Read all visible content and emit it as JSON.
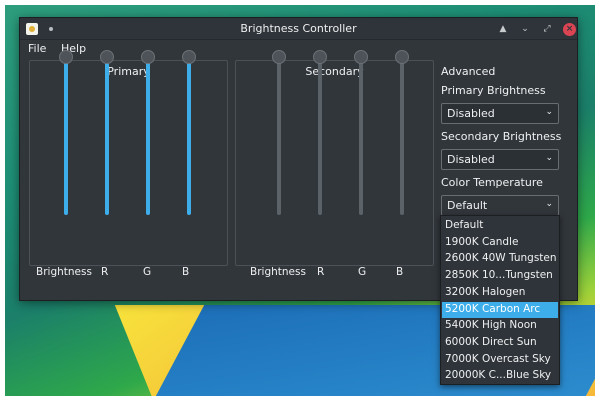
{
  "window": {
    "title": "Brightness Controller"
  },
  "menu": [
    "File",
    "Help"
  ],
  "primary": {
    "title": "Primary",
    "sliders": [
      {
        "label": "Brightness",
        "value": 1.0
      },
      {
        "label": "R",
        "value": 1.0
      },
      {
        "label": "G",
        "value": 1.0
      },
      {
        "label": "B",
        "value": 1.0
      }
    ],
    "accent": "#3daee9"
  },
  "secondary": {
    "title": "Secondary",
    "sliders": [
      {
        "label": "Brightness",
        "value": 1.0
      },
      {
        "label": "R",
        "value": 1.0
      },
      {
        "label": "G",
        "value": 1.0
      },
      {
        "label": "B",
        "value": 1.0
      }
    ],
    "accent": "#5b6268"
  },
  "advanced": {
    "title": "Advanced",
    "primary_brightness_label": "Primary Brightness",
    "primary_brightness_value": "Disabled",
    "secondary_brightness_label": "Secondary Brightness",
    "secondary_brightness_value": "Disabled",
    "color_temp_label": "Color Temperature",
    "color_temp_value": "Default"
  },
  "color_temp_options": [
    "Default",
    "1900K Candle",
    "2600K 40W Tungsten",
    "2850K 10...Tungsten",
    "3200K Halogen",
    "5200K Carbon Arc",
    "5400K High Noon",
    "6000K Direct Sun",
    "7000K Overcast Sky",
    "20000K C...Blue Sky"
  ],
  "color_temp_highlighted": 5,
  "icons": {
    "app": "sun-app-icon",
    "pin": "on-all-desktops-icon",
    "help": "context-help-icon",
    "minimize": "minimize-icon",
    "maximize": "maximize-icon",
    "close": "close-icon",
    "combo_arrow": "chevron-down-icon"
  },
  "colors": {
    "window_bg": "#31363b",
    "highlight": "#3daee9",
    "close": "#da4453"
  }
}
